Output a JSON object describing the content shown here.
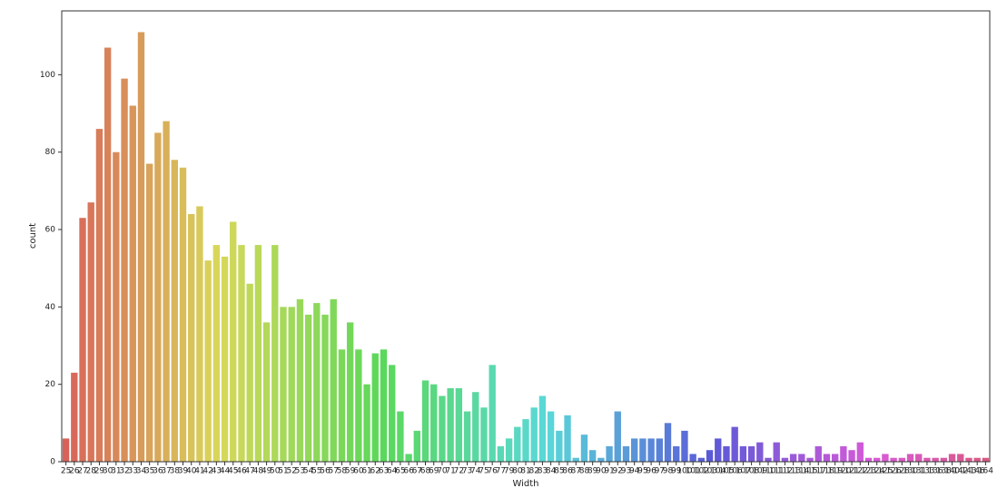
{
  "chart_data": {
    "type": "bar",
    "palette": "husl",
    "x_label": "Width",
    "y_label": "count",
    "categories": [
      25,
      26,
      27,
      28,
      29,
      30,
      31,
      32,
      33,
      34,
      35,
      36,
      37,
      38,
      39,
      40,
      41,
      42,
      43,
      44,
      45,
      46,
      47,
      48,
      49,
      50,
      51,
      52,
      53,
      54,
      55,
      56,
      57,
      58,
      59,
      60,
      61,
      62,
      63,
      64,
      65,
      66,
      67,
      68,
      69,
      70,
      71,
      72,
      73,
      74,
      75,
      76,
      77,
      79,
      80,
      81,
      82,
      83,
      84,
      85,
      86,
      87,
      88,
      89,
      90,
      91,
      92,
      93,
      94,
      95,
      96,
      97,
      98,
      99,
      100,
      101,
      102,
      103,
      104,
      105,
      106,
      107,
      108,
      109,
      110,
      111,
      112,
      113,
      114,
      115,
      117,
      118,
      119,
      120,
      121,
      122,
      123,
      124,
      125,
      126,
      128,
      130,
      131,
      133,
      136,
      138,
      140,
      142,
      143,
      146,
      164
    ],
    "values": [
      6,
      23,
      63,
      67,
      86,
      107,
      80,
      99,
      92,
      111,
      77,
      85,
      88,
      78,
      76,
      64,
      66,
      52,
      56,
      53,
      62,
      56,
      46,
      56,
      36,
      56,
      40,
      40,
      42,
      38,
      41,
      38,
      42,
      29,
      36,
      29,
      20,
      28,
      29,
      25,
      13,
      2,
      8,
      21,
      20,
      17,
      19,
      19,
      13,
      18,
      14,
      25,
      4,
      6,
      9,
      11,
      14,
      17,
      13,
      8,
      12,
      1,
      7,
      3,
      1,
      4,
      13,
      4,
      6,
      6,
      6,
      6,
      10,
      4,
      8,
      2,
      1,
      3,
      6,
      4,
      9,
      4,
      4,
      5,
      1,
      5,
      1,
      2,
      2,
      1,
      4,
      2,
      2,
      4,
      3,
      5,
      1,
      1,
      2,
      1,
      1,
      2,
      2,
      1,
      1,
      1,
      2,
      2,
      1,
      1,
      1
    ],
    "ylim": [
      0,
      116.5
    ],
    "yticks": [
      0,
      20,
      40,
      60,
      80,
      100
    ],
    "grid": false
  }
}
